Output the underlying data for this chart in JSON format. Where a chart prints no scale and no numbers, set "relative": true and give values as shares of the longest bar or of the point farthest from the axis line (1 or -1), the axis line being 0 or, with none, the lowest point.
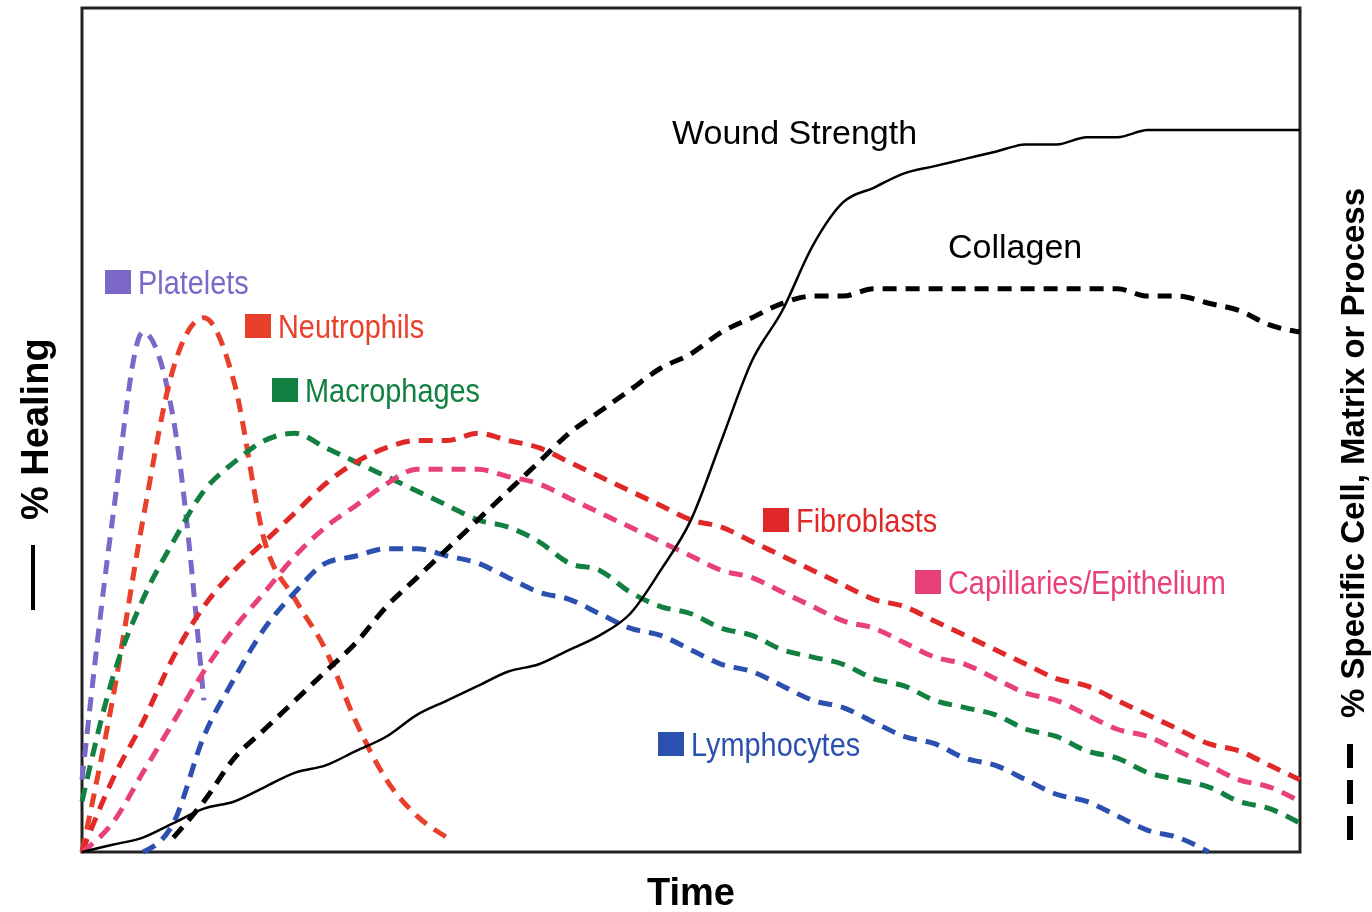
{
  "chart_data": {
    "type": "line",
    "relative": true,
    "legend": "bottom left",
    "xlabel": "Time",
    "ylabel": "% Healing",
    "y2label": "% Specific Cell, Matrix or Process",
    "categories": [
      null,
      null,
      null,
      null,
      null,
      null,
      null,
      null,
      null,
      null,
      null,
      null,
      null,
      null,
      null,
      null,
      null,
      null,
      null,
      null,
      null,
      null,
      null,
      null,
      null,
      null,
      null,
      null,
      null,
      null,
      null,
      null,
      null,
      null,
      null,
      null,
      null,
      null,
      null,
      null,
      null
    ],
    "series": [
      {
        "name": "Platelets",
        "color": "#7b68c8",
        "line_style": "dashed",
        "values": [
          0.1,
          0.46,
          0.72,
          0.6,
          0.21,
          null,
          null,
          null,
          null,
          null,
          null,
          null,
          null,
          null,
          null,
          null,
          null,
          null,
          null,
          null,
          null,
          null,
          null,
          null,
          null,
          null,
          null,
          null,
          null,
          null,
          null,
          null,
          null,
          null,
          null,
          null,
          null,
          null,
          null,
          null,
          null
        ]
      },
      {
        "name": "Neutrophils",
        "color": "#e8402a",
        "line_style": "dashed",
        "values": [
          0,
          0.21,
          0.46,
          0.67,
          0.74,
          0.65,
          0.43,
          0.35,
          0.28,
          0.18,
          0.1,
          0.05,
          0.02,
          null,
          null,
          null,
          null,
          null,
          null,
          null,
          null,
          null,
          null,
          null,
          null,
          null,
          null,
          null,
          null,
          null,
          null,
          null,
          null,
          null,
          null,
          null,
          null,
          null,
          null,
          null,
          null
        ]
      },
      {
        "name": "Macrophages",
        "color": "#128040",
        "line_style": "dashed",
        "values": [
          0.07,
          0.24,
          0.35,
          0.43,
          0.5,
          0.54,
          0.57,
          0.58,
          0.56,
          0.54,
          0.52,
          0.5,
          0.48,
          0.46,
          0.45,
          0.43,
          0.4,
          0.39,
          0.36,
          0.34,
          0.33,
          0.31,
          0.3,
          0.28,
          0.27,
          0.26,
          0.24,
          0.23,
          0.21,
          0.2,
          0.19,
          0.17,
          0.16,
          0.14,
          0.13,
          0.11,
          0.1,
          0.09,
          0.07,
          0.06,
          0.04
        ]
      },
      {
        "name": "Fibroblasts",
        "color": "#e02828",
        "line_style": "dashed",
        "values": [
          0,
          0.1,
          0.18,
          0.27,
          0.34,
          0.39,
          0.43,
          0.47,
          0.51,
          0.54,
          0.56,
          0.57,
          0.57,
          0.58,
          0.57,
          0.56,
          0.54,
          0.52,
          0.5,
          0.48,
          0.46,
          0.45,
          0.43,
          0.41,
          0.39,
          0.37,
          0.35,
          0.34,
          0.32,
          0.3,
          0.28,
          0.26,
          0.24,
          0.23,
          0.21,
          0.19,
          0.17,
          0.15,
          0.14,
          0.12,
          0.1
        ]
      },
      {
        "name": "Capillaries/Epithelium",
        "color": "#e8407a",
        "line_style": "dashed",
        "values": [
          0,
          0.04,
          0.11,
          0.18,
          0.25,
          0.31,
          0.36,
          0.41,
          0.45,
          0.48,
          0.51,
          0.53,
          0.53,
          0.53,
          0.52,
          0.51,
          0.49,
          0.47,
          0.45,
          0.43,
          0.41,
          0.39,
          0.38,
          0.36,
          0.34,
          0.32,
          0.31,
          0.29,
          0.27,
          0.26,
          0.24,
          0.22,
          0.21,
          0.19,
          0.17,
          0.16,
          0.14,
          0.12,
          0.1,
          0.09,
          0.07
        ]
      },
      {
        "name": "Lymphocytes",
        "color": "#2c50b0",
        "line_style": "dashed",
        "values": [
          null,
          null,
          0,
          0.04,
          0.16,
          0.24,
          0.31,
          0.36,
          0.4,
          0.41,
          0.42,
          0.42,
          0.41,
          0.4,
          0.38,
          0.36,
          0.35,
          0.33,
          0.31,
          0.3,
          0.28,
          0.26,
          0.25,
          0.23,
          0.21,
          0.2,
          0.18,
          0.16,
          0.15,
          0.13,
          0.12,
          0.1,
          0.08,
          0.07,
          0.05,
          0.03,
          0.02,
          0,
          null,
          null,
          null
        ]
      },
      {
        "name": "Collagen",
        "color": "#000000",
        "line_style": "dashed",
        "values": [
          null,
          null,
          null,
          0.02,
          0.07,
          0.13,
          0.17,
          0.21,
          0.25,
          0.29,
          0.34,
          0.38,
          0.42,
          0.46,
          0.5,
          0.54,
          0.58,
          0.61,
          0.64,
          0.67,
          0.69,
          0.72,
          0.74,
          0.76,
          0.77,
          0.77,
          0.78,
          0.78,
          0.78,
          0.78,
          0.78,
          0.78,
          0.78,
          0.78,
          0.78,
          0.77,
          0.77,
          0.76,
          0.75,
          0.73,
          0.72
        ]
      },
      {
        "name": "Wound Strength",
        "color": "#000000",
        "line_style": "solid",
        "values": [
          0,
          0.01,
          0.02,
          0.04,
          0.06,
          0.07,
          0.09,
          0.11,
          0.12,
          0.14,
          0.16,
          0.19,
          0.21,
          0.23,
          0.25,
          0.26,
          0.28,
          0.3,
          0.33,
          0.39,
          0.46,
          0.57,
          0.68,
          0.75,
          0.84,
          0.9,
          0.92,
          0.94,
          0.95,
          0.96,
          0.97,
          0.98,
          0.98,
          0.99,
          0.99,
          1,
          1,
          1,
          1,
          1,
          1
        ]
      }
    ]
  }
}
